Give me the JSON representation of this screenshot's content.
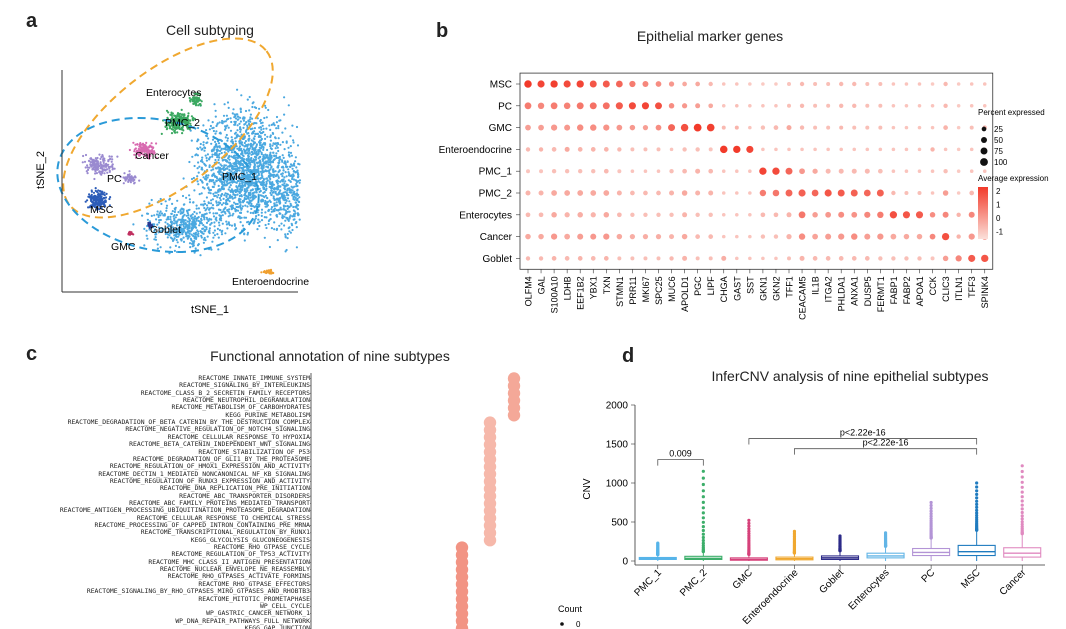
{
  "panels": {
    "a": {
      "label": "a",
      "title": "Cell subtyping",
      "xlabel": "tSNE_1",
      "ylabel": "tSNE_2",
      "clusters": [
        "Enterocytes",
        "PMC_2",
        "Cancer",
        "PC",
        "PMC_1",
        "MSC",
        "Goblet",
        "GMC",
        "Enteroendocrine"
      ]
    },
    "b": {
      "label": "b",
      "title": "Epithelial marker genes"
    },
    "c": {
      "label": "c",
      "title": "Functional annotation of nine subtypes"
    },
    "d": {
      "label": "d",
      "title": "InferCNV analysis of nine epithelial subtypes"
    }
  },
  "colors": {
    "tsne_main": "#4aa8e0",
    "tsne_pmc2": "#3aa860",
    "tsne_cancer": "#d86ab0",
    "tsne_pc": "#9a8ad0",
    "tsne_msc": "#2c5cb8",
    "tsne_gmc": "#c03060",
    "tsne_goblet": "#2a3a90",
    "tsne_endo": "#f0a030",
    "ellipse_orange": "#f0a830",
    "ellipse_blue": "#2a9ad8",
    "dot_high": "#f23a2a",
    "dot_low": "#fbe0da"
  },
  "chart_data": [
    {
      "type": "scatter",
      "title": "Cell subtyping",
      "xlabel": "tSNE_1",
      "ylabel": "tSNE_2",
      "series": [
        {
          "name": "PMC_1"
        },
        {
          "name": "PMC_2"
        },
        {
          "name": "Enterocytes"
        },
        {
          "name": "Cancer"
        },
        {
          "name": "PC"
        },
        {
          "name": "MSC"
        },
        {
          "name": "Goblet"
        },
        {
          "name": "GMC"
        },
        {
          "name": "Enteroendocrine"
        }
      ]
    },
    {
      "type": "scatter",
      "title": "Epithelial marker genes",
      "rows": [
        "MSC",
        "PC",
        "GMC",
        "Enteroendocrine",
        "PMC_1",
        "PMC_2",
        "Enterocytes",
        "Cancer",
        "Goblet"
      ],
      "genes": [
        "OLFM4",
        "GAL",
        "S100A10",
        "LDHB",
        "EEF1B2",
        "YBX1",
        "TXN",
        "STMN1",
        "PRR11",
        "MKI67",
        "SPC25",
        "MUC6",
        "APOLD1",
        "PGC",
        "LIPF",
        "CHGA",
        "GAST",
        "SST",
        "GKN1",
        "GKN2",
        "TFF1",
        "CEACAM5",
        "IL1B",
        "ITGA2",
        "PHLDA1",
        "ANXA1",
        "DUSP5",
        "FERMT1",
        "FABP1",
        "FABP2",
        "APOA1",
        "CCK",
        "CLIC3",
        "ITLN1",
        "TFF3",
        "SPINK4"
      ],
      "size_legend": {
        "title": "Percent expressed",
        "values": [
          25,
          50,
          75,
          100
        ]
      },
      "color_legend": {
        "title": "Average expression",
        "ticks": [
          2,
          1,
          0,
          -1
        ]
      },
      "expression": [
        [
          2,
          1.8,
          1.9,
          1.7,
          1.8,
          1.5,
          1.4,
          1.2,
          0.8,
          0.6,
          0.5,
          0.3,
          0,
          0,
          -0.3,
          -0.5,
          -0.5,
          -0.6,
          -0.6,
          -0.6,
          -0.5,
          -0.3,
          -0.4,
          -0.4,
          -0.3,
          -0.3,
          -0.4,
          -0.4,
          -0.5,
          -0.5,
          -0.5,
          -0.6,
          -0.3,
          -0.6,
          -0.5,
          -0.5
        ],
        [
          0.8,
          0.6,
          0.8,
          0.7,
          0.9,
          1,
          1,
          1.4,
          1.7,
          1.8,
          1.6,
          0.5,
          0.3,
          0.2,
          0,
          -0.5,
          -0.4,
          -0.5,
          -0.5,
          -0.5,
          -0.4,
          -0.3,
          -0.4,
          -0.4,
          -0.3,
          -0.3,
          -0.4,
          -0.4,
          -0.5,
          -0.5,
          -0.5,
          -0.5,
          -0.3,
          -0.6,
          -0.5,
          -0.5
        ],
        [
          0.2,
          0.2,
          0.3,
          0.3,
          0.5,
          0.5,
          0.4,
          0.3,
          0.3,
          0.2,
          0.5,
          1.2,
          1.6,
          2,
          1.9,
          -0.3,
          -0.2,
          -0.5,
          -0.4,
          -0.3,
          0,
          -0.3,
          -0.4,
          -0.4,
          -0.3,
          -0.4,
          -0.4,
          -0.4,
          -0.5,
          -0.5,
          -0.5,
          -0.5,
          -0.2,
          -0.6,
          -0.4,
          -0.3
        ],
        [
          -0.3,
          -0.2,
          -0.3,
          0,
          -0.2,
          -0.2,
          -0.2,
          -0.3,
          -0.4,
          -0.4,
          -0.4,
          -0.5,
          -0.4,
          -0.4,
          -0.5,
          2,
          2,
          1.8,
          -0.5,
          -0.5,
          -0.5,
          -0.5,
          -0.5,
          -0.5,
          -0.5,
          -0.5,
          -0.5,
          -0.5,
          -0.5,
          -0.5,
          -0.5,
          -0.2,
          -0.5,
          -0.6,
          -0.5,
          -0.5
        ],
        [
          -0.5,
          -0.5,
          -0.4,
          -0.4,
          -0.4,
          -0.4,
          -0.3,
          -0.5,
          -0.5,
          -0.5,
          -0.5,
          -0.4,
          -0.3,
          -0.2,
          -0.3,
          -0.5,
          -0.5,
          -0.5,
          1.8,
          1.7,
          1.2,
          0.3,
          0,
          -0.3,
          -0.3,
          -0.3,
          -0.3,
          -0.4,
          -0.5,
          -0.5,
          -0.5,
          -0.5,
          -0.4,
          -0.6,
          -0.5,
          -0.5
        ],
        [
          -0.2,
          -0.2,
          0,
          0,
          0,
          0,
          0,
          -0.2,
          -0.3,
          -0.3,
          -0.3,
          -0.2,
          0,
          -0.2,
          -0.2,
          -0.5,
          -0.5,
          -0.5,
          0.8,
          0.9,
          1.2,
          1.3,
          1.2,
          1.5,
          1.4,
          1.3,
          1.2,
          1.3,
          -0.3,
          -0.4,
          -0.4,
          -0.5,
          0.2,
          -0.6,
          -0.3,
          -0.3
        ],
        [
          -0.3,
          -0.3,
          0,
          -0.2,
          -0.1,
          -0.2,
          0,
          -0.3,
          -0.4,
          -0.4,
          -0.4,
          -0.4,
          -0.2,
          -0.4,
          -0.4,
          -0.5,
          -0.5,
          -0.5,
          -0.3,
          -0.3,
          -0.2,
          0.9,
          0.2,
          0.3,
          0.5,
          0.4,
          0.6,
          0.8,
          1.6,
          1.5,
          1.4,
          0.5,
          0.6,
          -0.2,
          0.6,
          0.6
        ],
        [
          0,
          0,
          0.3,
          0,
          0.2,
          0.3,
          0.3,
          0,
          -0.1,
          -0.1,
          -0.1,
          -0.2,
          0,
          -0.3,
          -0.3,
          -0.5,
          -0.5,
          -0.5,
          -0.4,
          -0.4,
          -0.2,
          0.5,
          0.1,
          0.2,
          0.3,
          0.5,
          0.2,
          0.3,
          0,
          0,
          0,
          0.6,
          1.6,
          -0.2,
          0.3,
          0.5
        ],
        [
          -0.3,
          -0.3,
          -0.2,
          -0.3,
          -0.2,
          -0.3,
          -0.2,
          -0.4,
          -0.4,
          -0.4,
          -0.4,
          -0.3,
          -0.2,
          -0.4,
          -0.4,
          -0.1,
          -0.5,
          -0.5,
          -0.5,
          -0.5,
          -0.4,
          -0.2,
          -0.3,
          -0.3,
          -0.3,
          -0.3,
          -0.3,
          -0.4,
          -0.4,
          -0.4,
          -0.4,
          -0.5,
          0.2,
          0.6,
          1.4,
          1.5
        ]
      ],
      "percent": [
        [
          90,
          80,
          85,
          80,
          85,
          75,
          75,
          70,
          55,
          50,
          45,
          35,
          25,
          25,
          20,
          10,
          10,
          10,
          10,
          10,
          15,
          20,
          15,
          15,
          20,
          20,
          15,
          15,
          10,
          10,
          10,
          10,
          20,
          10,
          10,
          10
        ],
        [
          70,
          60,
          70,
          65,
          75,
          75,
          75,
          80,
          80,
          80,
          75,
          40,
          35,
          30,
          25,
          10,
          10,
          10,
          10,
          10,
          15,
          20,
          15,
          15,
          20,
          20,
          15,
          15,
          10,
          10,
          10,
          10,
          20,
          10,
          10,
          10
        ],
        [
          45,
          45,
          55,
          50,
          60,
          60,
          55,
          45,
          40,
          35,
          45,
          75,
          90,
          100,
          95,
          15,
          15,
          10,
          20,
          25,
          30,
          20,
          15,
          15,
          15,
          15,
          15,
          15,
          10,
          10,
          10,
          10,
          25,
          10,
          15,
          20
        ],
        [
          20,
          20,
          25,
          30,
          25,
          25,
          25,
          20,
          15,
          15,
          15,
          10,
          20,
          20,
          15,
          90,
          85,
          80,
          10,
          10,
          10,
          10,
          10,
          10,
          10,
          10,
          10,
          10,
          10,
          10,
          10,
          20,
          10,
          10,
          10,
          10
        ],
        [
          15,
          15,
          20,
          20,
          20,
          20,
          25,
          15,
          10,
          10,
          10,
          20,
          25,
          30,
          25,
          10,
          10,
          10,
          85,
          85,
          75,
          45,
          35,
          30,
          30,
          30,
          30,
          25,
          10,
          10,
          10,
          10,
          20,
          10,
          10,
          10
        ],
        [
          30,
          30,
          45,
          45,
          45,
          45,
          45,
          30,
          25,
          25,
          25,
          30,
          40,
          30,
          30,
          10,
          10,
          10,
          60,
          65,
          75,
          80,
          70,
          80,
          75,
          75,
          70,
          75,
          20,
          15,
          15,
          10,
          40,
          10,
          25,
          25
        ],
        [
          25,
          25,
          40,
          35,
          40,
          35,
          40,
          25,
          20,
          20,
          20,
          20,
          30,
          20,
          20,
          10,
          10,
          10,
          25,
          25,
          30,
          70,
          40,
          45,
          50,
          45,
          55,
          60,
          85,
          80,
          80,
          40,
          50,
          20,
          50,
          55
        ],
        [
          40,
          40,
          55,
          45,
          50,
          50,
          55,
          40,
          35,
          35,
          35,
          30,
          40,
          25,
          25,
          10,
          10,
          10,
          20,
          20,
          35,
          60,
          45,
          50,
          55,
          60,
          50,
          55,
          45,
          40,
          40,
          45,
          85,
          20,
          55,
          60
        ],
        [
          20,
          20,
          25,
          25,
          25,
          25,
          25,
          15,
          15,
          15,
          15,
          20,
          30,
          15,
          15,
          30,
          10,
          10,
          10,
          10,
          15,
          30,
          25,
          25,
          25,
          25,
          25,
          20,
          20,
          20,
          20,
          15,
          40,
          55,
          80,
          85
        ]
      ]
    },
    {
      "type": "scatter",
      "title": "Functional annotation of nine subtypes",
      "pathways": [
        "REACTOME_INNATE_IMMUNE_SYSTEM",
        "REACTOME_SIGNALING_BY_INTERLEUKINS",
        "REACTOME_CLASS_B_2_SECRETIN_FAMILY_RECEPTORS",
        "REACTOME_NEUTROPHIL_DEGRANULATION",
        "REACTOME_METABOLISM_OF_CARBOHYDRATES",
        "KEGG_PURINE_METABOLISM",
        "REACTOME_DEGRADATION_OF_BETA_CATENIN_BY_THE_DESTRUCTION_COMPLEX",
        "REACTOME_NEGATIVE_REGULATION_OF_NOTCH4_SIGNALING",
        "REACTOME_CELLULAR_RESPONSE_TO_HYPOXIA",
        "REACTOME_BETA_CATENIN_INDEPENDENT_WNT_SIGNALING",
        "REACTOME_STABILIZATION_OF_P53",
        "REACTOME_DEGRADATION_OF_GLI1_BY_THE_PROTEASOME",
        "REACTOME_REGULATION_OF_HMOX1_EXPRESSION_AND_ACTIVITY",
        "REACTOME_DECTIN_1_MEDIATED_NONCANONICAL_NF_KB_SIGNALING",
        "REACTOME_REGULATION_OF_RUNX3_EXPRESSION_AND_ACTIVITY",
        "REACTOME_DNA_REPLICATION_PRE_INITIATION",
        "REACTOME_ABC_TRANSPORTER_DISORDERS",
        "REACTOME_ABC_FAMILY_PROTEINS_MEDIATED_TRANSPORT",
        "REACTOME_ANTIGEN_PROCESSING_UBIQUITINATION_PROTEASOME_DEGRADATION",
        "REACTOME_CELLULAR_RESPONSE_TO_CHEMICAL_STRESS",
        "REACTOME_PROCESSING_OF_CAPPED_INTRON_CONTAINING_PRE_MRNA",
        "REACTOME_TRANSCRIPTIONAL_REGULATION_BY_RUNX1",
        "KEGG_GLYCOLYSIS_GLUCONEOGENESIS",
        "REACTOME_RHO_GTPASE_CYCLE",
        "REACTOME_REGULATION_OF_TP53_ACTIVITY",
        "REACTOME_MHC_CLASS_II_ANTIGEN_PRESENTATION",
        "REACTOME_NUCLEAR_ENVELOPE_NE_REASSEMBLY",
        "REACTOME_RHO_GTPASES_ACTIVATE_FORMINS",
        "REACTOME_RHO_GTPASE_EFFECTORS",
        "REACTOME_SIGNALING_BY_RHO_GTPASES_MIRO_GTPASES_AND_RHOBTB3",
        "REACTOME_MITOTIC_PROMETAPHASE",
        "WP_CELL_CYCLE",
        "WP_GASTRIC_CANCER_NETWORK_1",
        "WP_DNA_REPAIR_PATHWAYS_FULL_NETWORK",
        "KEGG_GAP_JUNCTION"
      ],
      "group_of_pathway": [
        4,
        4,
        4,
        4,
        4,
        4,
        2,
        2,
        2,
        2,
        2,
        2,
        2,
        2,
        2,
        2,
        2,
        2,
        2,
        2,
        2,
        2,
        2,
        0,
        0,
        0,
        0,
        0,
        0,
        0,
        0,
        0,
        0,
        0,
        0
      ],
      "size_legend": {
        "title": "Count",
        "values": [
          0
        ]
      }
    },
    {
      "type": "box",
      "title": "InferCNV analysis of nine epithelial subtypes",
      "xlabel": "",
      "ylabel": "CNV",
      "ylim": [
        0,
        2000
      ],
      "yticks": [
        0,
        500,
        1000,
        1500,
        2000
      ],
      "categories": [
        "PMC_1",
        "PMC_2",
        "GMC",
        "Enteroendocrine",
        "Goblet",
        "Enterocytes",
        "PC",
        "MSC",
        "Cancer"
      ],
      "box_colors": [
        "#56b4e9",
        "#3cae6a",
        "#d6417a",
        "#f0a830",
        "#2c2a88",
        "#63b5e6",
        "#b394d6",
        "#1f7bbf",
        "#e08ac0"
      ],
      "boxes": [
        {
          "q1": 20,
          "median": 30,
          "q3": 45,
          "max_outlier": 230
        },
        {
          "q1": 20,
          "median": 35,
          "q3": 60,
          "max_outlier": 1150
        },
        {
          "q1": 10,
          "median": 20,
          "q3": 40,
          "max_outlier": 520
        },
        {
          "q1": 15,
          "median": 30,
          "q3": 50,
          "max_outlier": 380
        },
        {
          "q1": 20,
          "median": 40,
          "q3": 65,
          "max_outlier": 320
        },
        {
          "q1": 40,
          "median": 65,
          "q3": 100,
          "max_outlier": 360
        },
        {
          "q1": 70,
          "median": 110,
          "q3": 160,
          "max_outlier": 750
        },
        {
          "q1": 70,
          "median": 120,
          "q3": 200,
          "max_outlier": 1000
        },
        {
          "q1": 50,
          "median": 100,
          "q3": 170,
          "max_outlier": 1220
        }
      ],
      "annotations": [
        {
          "text": "0.009",
          "from": "PMC_1",
          "to": "PMC_2",
          "y": 1300
        },
        {
          "text": "p<2.22e-16",
          "from": "GMC",
          "to": "MSC",
          "y": 1570
        },
        {
          "text": "p<2.22e-16",
          "from": "Enteroendocrine",
          "to": "MSC",
          "y": 1440
        }
      ]
    }
  ]
}
